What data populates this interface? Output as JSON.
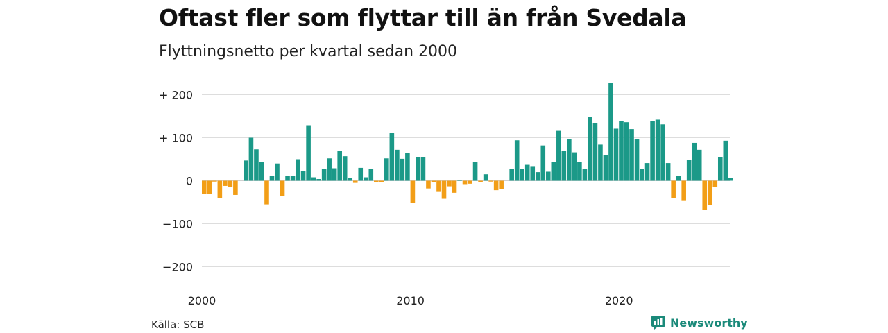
{
  "title": "Oftast fler som flyttar till än från Svedala",
  "subtitle": "Flyttningsnetto per kvartal sedan 2000",
  "source": "Källa: SCB",
  "brand": "Newsworthy",
  "colors": {
    "positive": "#1b9988",
    "negative": "#f29e17",
    "grid": "#dddddd"
  },
  "chart_data": {
    "type": "bar",
    "x_start_year": 2000,
    "periods_per_year": 4,
    "ylim": [
      -200,
      230
    ],
    "yticks": [
      {
        "value": 200,
        "label": "+ 200"
      },
      {
        "value": 100,
        "label": "+ 100"
      },
      {
        "value": 0,
        "label": "0"
      },
      {
        "value": -100,
        "label": "−100"
      },
      {
        "value": -200,
        "label": "−200"
      }
    ],
    "xticks": [
      {
        "index": 0,
        "label": "2000"
      },
      {
        "index": 40,
        "label": "2010"
      },
      {
        "index": 80,
        "label": "2020"
      }
    ],
    "values": [
      -30,
      -30,
      -2,
      -40,
      -12,
      -15,
      -33,
      0,
      47,
      100,
      73,
      43,
      -55,
      11,
      40,
      -35,
      12,
      11,
      50,
      23,
      129,
      8,
      4,
      27,
      52,
      29,
      70,
      57,
      6,
      -5,
      30,
      8,
      27,
      -3,
      -3,
      52,
      111,
      72,
      51,
      65,
      -51,
      55,
      55,
      -18,
      -3,
      -26,
      -42,
      -13,
      -28,
      2,
      -8,
      -7,
      43,
      -3,
      15,
      -2,
      -22,
      -20,
      0,
      28,
      94,
      27,
      37,
      34,
      20,
      82,
      21,
      43,
      116,
      70,
      96,
      66,
      43,
      28,
      149,
      134,
      84,
      59,
      228,
      121,
      139,
      136,
      120,
      96,
      28,
      41,
      139,
      142,
      131,
      41,
      -40,
      12,
      -47,
      49,
      88,
      72,
      -68,
      -56,
      -15,
      55,
      93,
      7
    ]
  }
}
